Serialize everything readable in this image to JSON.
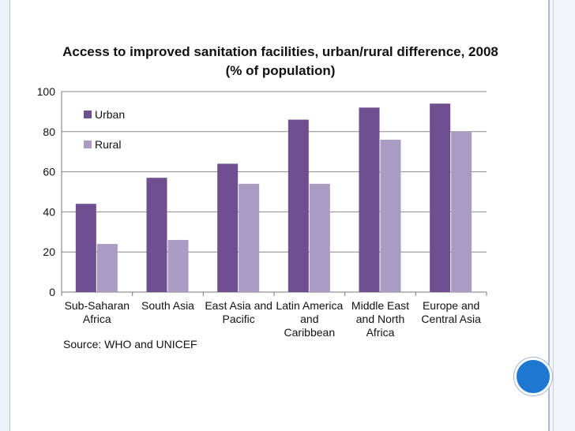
{
  "chart_data": {
    "type": "bar",
    "title": "Access to improved sanitation facilities, urban/rural difference, 2008",
    "subtitle": "(% of population)",
    "categories": [
      [
        "Sub-Saharan",
        "Africa"
      ],
      [
        "South Asia"
      ],
      [
        "East Asia and",
        "Pacific"
      ],
      [
        "Latin America",
        "and",
        "Caribbean"
      ],
      [
        "Middle East",
        "and North",
        "Africa"
      ],
      [
        "Europe and",
        "Central Asia"
      ]
    ],
    "series": [
      {
        "name": "Urban",
        "values": [
          44,
          57,
          64,
          86,
          92,
          94
        ],
        "color": "#6f4f8f"
      },
      {
        "name": "Rural",
        "values": [
          24,
          26,
          54,
          54,
          76,
          80
        ],
        "color": "#a99bc2"
      }
    ],
    "ylim": [
      0,
      100
    ],
    "yticks": [
      0,
      20,
      40,
      60,
      80,
      100
    ],
    "grid": true,
    "legend": "top-left",
    "source": "Source: WHO and UNICEF"
  }
}
